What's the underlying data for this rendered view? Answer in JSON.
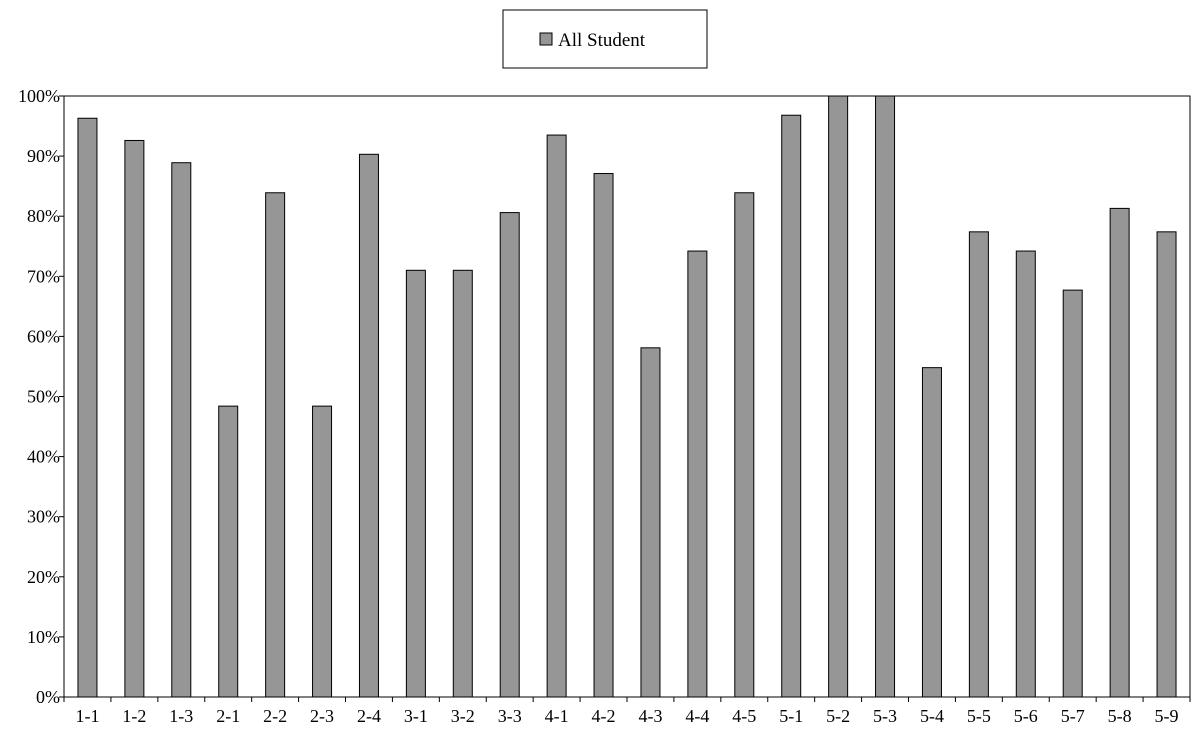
{
  "chart_data": {
    "type": "bar",
    "title": "",
    "xlabel": "",
    "ylabel": "",
    "ylim": [
      0,
      100
    ],
    "y_ticks": [
      "0%",
      "10%",
      "20%",
      "30%",
      "40%",
      "50%",
      "60%",
      "70%",
      "80%",
      "90%",
      "100%"
    ],
    "categories": [
      "1-1",
      "1-2",
      "1-3",
      "2-1",
      "2-2",
      "2-3",
      "2-4",
      "3-1",
      "3-2",
      "3-3",
      "4-1",
      "4-2",
      "4-3",
      "4-4",
      "4-5",
      "5-1",
      "5-2",
      "5-3",
      "5-4",
      "5-5",
      "5-6",
      "5-7",
      "5-8",
      "5-9"
    ],
    "series": [
      {
        "name": "All Student",
        "color": "#969696",
        "values": [
          96.3,
          92.6,
          88.9,
          48.4,
          83.9,
          48.4,
          90.3,
          71.0,
          71.0,
          80.6,
          93.5,
          87.1,
          58.1,
          74.2,
          83.9,
          96.8,
          100,
          100,
          54.8,
          77.4,
          74.2,
          67.7,
          81.3,
          77.4
        ]
      }
    ],
    "legend": {
      "position": "top-center",
      "label": "All Student"
    },
    "grid": false
  }
}
